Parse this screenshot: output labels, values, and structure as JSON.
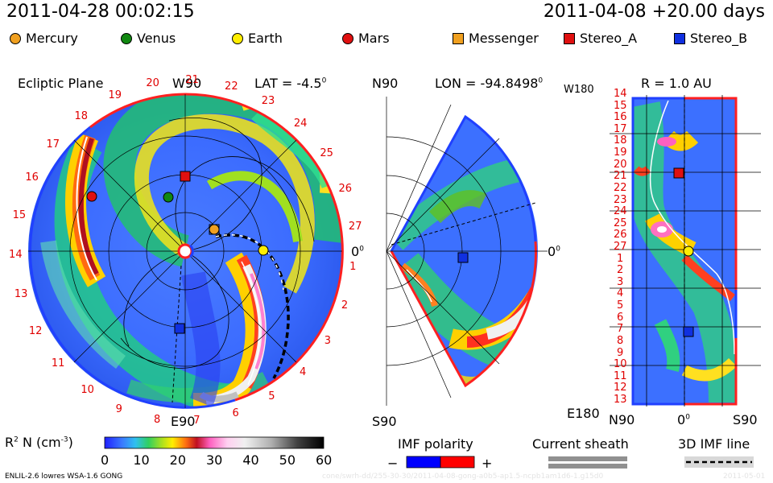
{
  "header": {
    "datetime": "2011-04-28 00:02:15",
    "run_label": "2011-04-08 +20.00 days"
  },
  "legend": [
    {
      "label": "Mercury",
      "color": "#f0a020",
      "shape": "circle"
    },
    {
      "label": "Venus",
      "color": "#118811",
      "shape": "circle"
    },
    {
      "label": "Earth",
      "color": "#ffee00",
      "shape": "circle"
    },
    {
      "label": "Mars",
      "color": "#e01010",
      "shape": "circle"
    },
    {
      "label": "Messenger",
      "color": "#f0a020",
      "shape": "square"
    },
    {
      "label": "Stereo_A",
      "color": "#e01010",
      "shape": "square"
    },
    {
      "label": "Stereo_B",
      "color": "#1030e0",
      "shape": "square"
    }
  ],
  "panels": {
    "ecliptic": {
      "title": "Ecliptic Plane",
      "top_label": "W90",
      "lat_label": "LAT = -4.5",
      "lat_sup": "0",
      "right_label": "0",
      "right_sup": "0",
      "bottom_label": "E90",
      "rotation_numbers": [
        "27",
        "26",
        "25",
        "24",
        "23",
        "22",
        "21",
        "20",
        "19",
        "18",
        "17",
        "16",
        "15",
        "14",
        "13",
        "12",
        "11",
        "10",
        "9",
        "8",
        "7",
        "6",
        "5",
        "4",
        "3",
        "2",
        "1"
      ]
    },
    "meridional": {
      "top_label": "N90",
      "lon_label": "LON = -94.8498",
      "lon_sup": "0",
      "right_label": "0",
      "right_sup": "0",
      "bottom_label": "S90"
    },
    "radial": {
      "title": "R = 1.0 AU",
      "top_label": "W180",
      "bottom_label": "E180",
      "x_labels": [
        "N90",
        "0",
        "S90"
      ],
      "x_sup": "0",
      "row_labels": [
        "14",
        "15",
        "16",
        "17",
        "18",
        "19",
        "20",
        "21",
        "22",
        "23",
        "24",
        "25",
        "26",
        "27",
        "1",
        "2",
        "3",
        "4",
        "5",
        "6",
        "7",
        "8",
        "9",
        "10",
        "11",
        "12",
        "13"
      ]
    }
  },
  "colorbar": {
    "label": "R",
    "label_sup": "2",
    "label_rest": "N (cm",
    "label_unit_sup": "-3",
    "label_close": ")",
    "ticks": [
      "0",
      "10",
      "20",
      "30",
      "40",
      "50",
      "60"
    ],
    "min": 0,
    "max": 60
  },
  "imf": {
    "title": "IMF polarity",
    "minus": "−",
    "plus": "+",
    "negative_color": "#0000ff",
    "positive_color": "#ff0000"
  },
  "current_sheath": {
    "title": "Current sheath"
  },
  "imf_line": {
    "title": "3D IMF line"
  },
  "footer": {
    "model": "ENLIL-2.6 lowres WSA-1.6 GONG",
    "run_id": "cone/swrh-dd/255-30-30/2011-04-08-gong-a0b5-ap1.5-ncpb1am1d6-1.g15d0",
    "date": "2011-05-01"
  },
  "chart_data": {
    "type": "heatmap",
    "variable": "R2 N",
    "colorbar_range": [
      0,
      60
    ],
    "colorbar_ticks": [
      0,
      10,
      20,
      30,
      40,
      50,
      60
    ],
    "ecliptic_lat_deg": -4.5,
    "meridional_lon_deg": -94.8498,
    "radial_distance_au": 1.0,
    "positions": [
      {
        "name": "Mercury",
        "panel": "ecliptic"
      },
      {
        "name": "Venus",
        "panel": "ecliptic"
      },
      {
        "name": "Earth",
        "panel": "ecliptic"
      },
      {
        "name": "Mars",
        "panel": "ecliptic"
      },
      {
        "name": "Messenger",
        "panel": "ecliptic"
      },
      {
        "name": "Stereo_A",
        "panel": "ecliptic"
      },
      {
        "name": "Stereo_B",
        "panel": "ecliptic"
      }
    ]
  }
}
